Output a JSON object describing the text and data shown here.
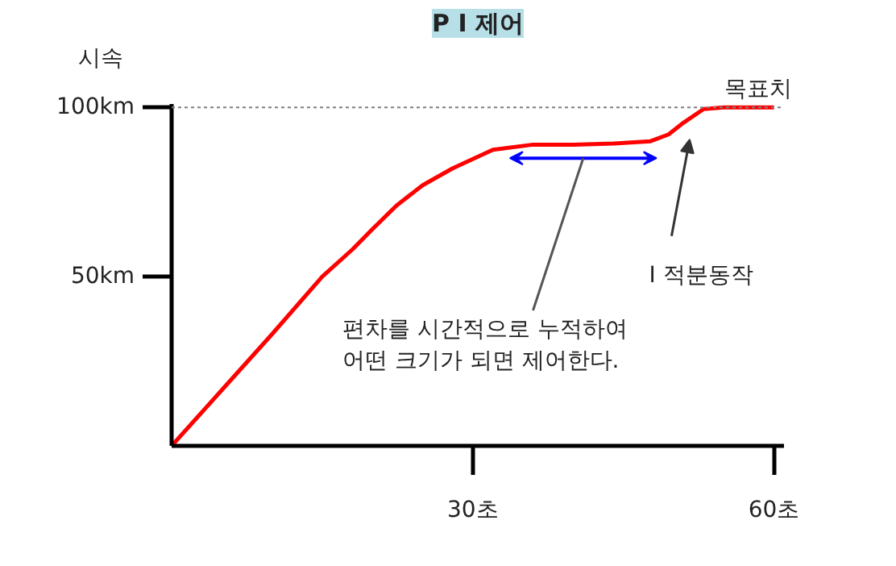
{
  "chart_data": {
    "type": "line",
    "title": "P I 제어",
    "ylabel": "시속",
    "x": [
      0,
      5,
      10,
      15,
      18,
      20,
      22.4,
      25,
      28,
      32,
      36,
      40,
      44,
      47.7,
      49.5,
      51,
      53,
      55,
      60
    ],
    "series": [
      {
        "color": "#ff0000",
        "values": [
          0,
          16.5,
          33,
          50,
          58,
          64,
          71,
          77,
          82,
          87.5,
          89,
          89,
          89.3,
          90,
          92,
          95.5,
          99.5,
          100,
          100
        ]
      }
    ],
    "xlim": [
      0,
      61
    ],
    "ylim": [
      0,
      101
    ],
    "xticks": [
      {
        "value": 30,
        "label": "30초"
      },
      {
        "value": 60,
        "label": "60초"
      }
    ],
    "yticks": [
      {
        "value": 50,
        "label": "50km"
      },
      {
        "value": 100,
        "label": "100km"
      }
    ],
    "grid": false,
    "line_style": "solid",
    "ref_lines": [
      {
        "axis": "y",
        "value": 100,
        "label": "목표치",
        "color": "#808080",
        "line_style": "dotted"
      }
    ],
    "annotations": [
      "편차를 시간적으로 누적하여\n어떤 크기가 되면 제어한다.",
      "I  적분동작"
    ]
  }
}
